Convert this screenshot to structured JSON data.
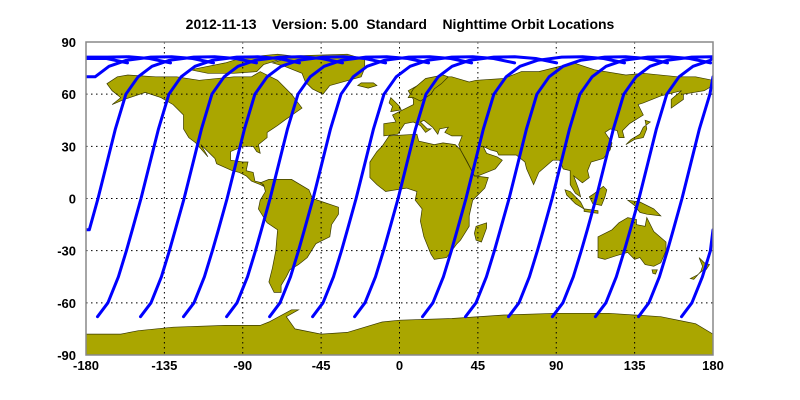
{
  "title": "2012-11-13    Version: 5.00  Standard    Nighttime Orbit Locations",
  "chart_data": {
    "type": "map",
    "projection": "equirectangular",
    "xlim": [
      -180,
      180
    ],
    "ylim": [
      -90,
      90
    ],
    "grid": true,
    "x_ticks": [
      "-180",
      "-135",
      "-90",
      "-45",
      "0",
      "45",
      "90",
      "135",
      "180"
    ],
    "y_ticks": [
      "90",
      "60",
      "30",
      "0",
      "-30",
      "-60",
      "-90"
    ],
    "land_color": "#aaa600",
    "track_color": "#0000ff",
    "orbit_tracks_southern_end_longitudes": [
      -173.4,
      -148.7,
      -124.0,
      -99.3,
      -74.6,
      -49.9,
      -25.8,
      13.2,
      37.9,
      62.6,
      87.8,
      112.5,
      137.2,
      161.9
    ],
    "orbit_tracks_southern_end_latitude": -68
  }
}
